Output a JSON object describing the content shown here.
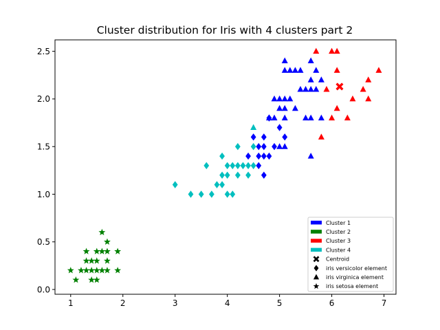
{
  "chart_data": {
    "type": "scatter",
    "title": "Cluster distribution for Iris with 4 clusters part 2",
    "xlabel": "",
    "ylabel": "",
    "xlim": [
      0.7,
      7.23
    ],
    "ylim": [
      -0.05,
      2.62
    ],
    "xticks": [
      1,
      2,
      3,
      4,
      5,
      6,
      7
    ],
    "xtick_labels": [
      "1",
      "2",
      "3",
      "4",
      "5",
      "6",
      "7"
    ],
    "yticks": [
      0.0,
      0.5,
      1.0,
      1.5,
      2.0,
      2.5
    ],
    "ytick_labels": [
      "0.0",
      "0.5",
      "1.0",
      "1.5",
      "2.0",
      "2.5"
    ],
    "grid": false,
    "legend_position": "lower-right",
    "legend": [
      {
        "label": "Cluster 1",
        "kind": "patch",
        "color": "#0000ff"
      },
      {
        "label": "Cluster 2",
        "kind": "patch",
        "color": "#008000"
      },
      {
        "label": "Cluster 3",
        "kind": "patch",
        "color": "#ff0000"
      },
      {
        "label": "Cluster 4",
        "kind": "patch",
        "color": "#00bfbf"
      },
      {
        "label": "Centroid",
        "kind": "marker",
        "marker": "x",
        "color": "#000000"
      },
      {
        "label": "iris versicolor element",
        "kind": "marker",
        "marker": "diamond",
        "color": "#000000"
      },
      {
        "label": "iris virginica element",
        "kind": "marker",
        "marker": "triangle",
        "color": "#000000"
      },
      {
        "label": "iris setosa element",
        "kind": "marker",
        "marker": "star",
        "color": "#000000"
      }
    ],
    "series": [
      {
        "cluster": "Cluster 2",
        "color": "#008000",
        "marker": "star",
        "points": [
          [
            1.0,
            0.2
          ],
          [
            1.1,
            0.1
          ],
          [
            1.2,
            0.2
          ],
          [
            1.3,
            0.4
          ],
          [
            1.3,
            0.3
          ],
          [
            1.3,
            0.2
          ],
          [
            1.4,
            0.3
          ],
          [
            1.4,
            0.2
          ],
          [
            1.4,
            0.1
          ],
          [
            1.5,
            0.4
          ],
          [
            1.5,
            0.3
          ],
          [
            1.5,
            0.2
          ],
          [
            1.5,
            0.1
          ],
          [
            1.6,
            0.6
          ],
          [
            1.6,
            0.4
          ],
          [
            1.6,
            0.2
          ],
          [
            1.7,
            0.5
          ],
          [
            1.7,
            0.4
          ],
          [
            1.7,
            0.3
          ],
          [
            1.7,
            0.2
          ],
          [
            1.9,
            0.4
          ],
          [
            1.9,
            0.2
          ]
        ]
      },
      {
        "cluster": "Cluster 4",
        "color": "#00bfbf",
        "marker": "diamond",
        "points": [
          [
            3.0,
            1.1
          ],
          [
            3.3,
            1.0
          ],
          [
            3.5,
            1.0
          ],
          [
            3.6,
            1.3
          ],
          [
            3.7,
            1.0
          ],
          [
            3.8,
            1.1
          ],
          [
            3.9,
            1.4
          ],
          [
            3.9,
            1.2
          ],
          [
            3.9,
            1.1
          ],
          [
            4.0,
            1.3
          ],
          [
            4.0,
            1.2
          ],
          [
            4.0,
            1.0
          ],
          [
            4.1,
            1.3
          ],
          [
            4.1,
            1.0
          ],
          [
            4.2,
            1.5
          ],
          [
            4.2,
            1.3
          ],
          [
            4.2,
            1.2
          ],
          [
            4.3,
            1.3
          ],
          [
            4.4,
            1.3
          ],
          [
            4.4,
            1.2
          ],
          [
            4.5,
            1.5
          ],
          [
            4.5,
            1.3
          ]
        ]
      },
      {
        "cluster": "Cluster 4",
        "color": "#00bfbf",
        "marker": "triangle",
        "points": [
          [
            4.5,
            1.7
          ]
        ]
      },
      {
        "cluster": "Cluster 1",
        "color": "#0000ff",
        "marker": "diamond",
        "points": [
          [
            4.4,
            1.4
          ],
          [
            4.5,
            1.6
          ],
          [
            4.6,
            1.5
          ],
          [
            4.6,
            1.4
          ],
          [
            4.6,
            1.3
          ],
          [
            4.7,
            1.6
          ],
          [
            4.7,
            1.5
          ],
          [
            4.7,
            1.4
          ],
          [
            4.7,
            1.2
          ],
          [
            4.8,
            1.8
          ],
          [
            4.8,
            1.4
          ],
          [
            4.9,
            1.5
          ],
          [
            5.0,
            1.7
          ],
          [
            5.1,
            1.6
          ]
        ]
      },
      {
        "cluster": "Cluster 1",
        "color": "#0000ff",
        "marker": "triangle",
        "points": [
          [
            4.8,
            1.8
          ],
          [
            4.9,
            1.8
          ],
          [
            4.9,
            2.0
          ],
          [
            5.0,
            1.5
          ],
          [
            5.0,
            2.0
          ],
          [
            5.0,
            1.9
          ],
          [
            5.1,
            2.4
          ],
          [
            5.1,
            2.3
          ],
          [
            5.1,
            2.0
          ],
          [
            5.1,
            1.9
          ],
          [
            5.1,
            1.8
          ],
          [
            5.1,
            1.5
          ],
          [
            5.2,
            2.3
          ],
          [
            5.2,
            2.0
          ],
          [
            5.3,
            2.3
          ],
          [
            5.3,
            1.9
          ],
          [
            5.4,
            2.3
          ],
          [
            5.4,
            2.1
          ],
          [
            5.5,
            2.1
          ],
          [
            5.5,
            1.8
          ],
          [
            5.6,
            2.4
          ],
          [
            5.6,
            2.2
          ],
          [
            5.6,
            2.1
          ],
          [
            5.6,
            1.8
          ],
          [
            5.6,
            1.4
          ],
          [
            5.7,
            2.3
          ],
          [
            5.7,
            2.1
          ],
          [
            5.8,
            2.2
          ],
          [
            5.8,
            1.8
          ]
        ]
      },
      {
        "cluster": "Cluster 3",
        "color": "#ff0000",
        "marker": "triangle",
        "points": [
          [
            5.7,
            2.5
          ],
          [
            5.8,
            1.6
          ],
          [
            5.9,
            2.1
          ],
          [
            6.0,
            1.8
          ],
          [
            6.0,
            2.5
          ],
          [
            6.1,
            2.5
          ],
          [
            6.1,
            2.3
          ],
          [
            6.1,
            1.9
          ],
          [
            6.3,
            1.8
          ],
          [
            6.4,
            2.0
          ],
          [
            6.6,
            2.1
          ],
          [
            6.7,
            2.2
          ],
          [
            6.7,
            2.0
          ],
          [
            6.9,
            2.3
          ]
        ]
      },
      {
        "cluster": "Cluster 3",
        "color": "#ff0000",
        "marker": "x",
        "role": "Centroid",
        "points": [
          [
            6.15,
            2.13
          ]
        ]
      }
    ]
  }
}
